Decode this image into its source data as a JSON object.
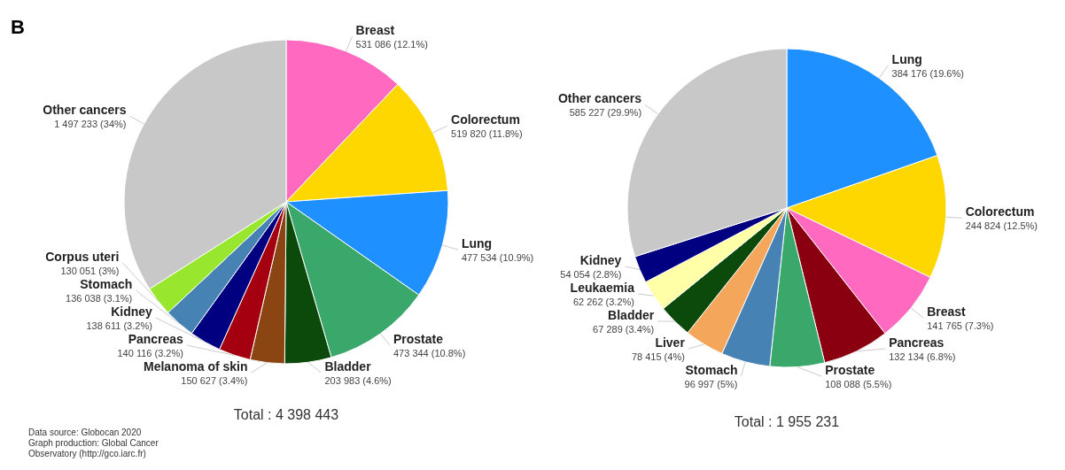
{
  "chart_data": [
    {
      "type": "pie",
      "categories": [
        "Breast",
        "Colorectum",
        "Lung",
        "Prostate",
        "Bladder",
        "Melanoma of skin",
        "Pancreas",
        "Kidney",
        "Stomach",
        "Corpus uteri",
        "Other cancers"
      ],
      "values": [
        531086,
        519820,
        477534,
        473344,
        203983,
        150627,
        140116,
        138611,
        136038,
        130051,
        1497233
      ],
      "value_labels": [
        "531 086 (12.1%)",
        "519 820 (11.8%)",
        "477 534 (10.9%)",
        "473 344 (10.8%)",
        "203 983 (4.6%)",
        "150 627 (3.4%)",
        "140 116 (3.2%)",
        "138 611 (3.2%)",
        "136 038 (3.1%)",
        "130 051 (3%)",
        "1 497 233 (34%)"
      ],
      "colors": [
        "#ff69c0",
        "#ffd700",
        "#1e90ff",
        "#3aa86b",
        "#0b4a0b",
        "#8b4513",
        "#a50010",
        "#000080",
        "#4682b4",
        "#99e62e",
        "#c8c8c8"
      ],
      "annotations": [
        "B",
        "Total : 4 398 443",
        "Data source: Globocan 2020",
        "Graph production: Global Cancer",
        "Observatory (http://gco.iarc.fr)"
      ]
    },
    {
      "type": "pie",
      "categories": [
        "Lung",
        "Colorectum",
        "Breast",
        "Pancreas",
        "Prostate",
        "Stomach",
        "Liver",
        "Bladder",
        "Leukaemia",
        "Kidney",
        "Other cancers"
      ],
      "values": [
        384176,
        244824,
        141765,
        132134,
        108088,
        96997,
        78415,
        67289,
        62262,
        54054,
        585227
      ],
      "value_labels": [
        "384 176 (19.6%)",
        "244 824 (12.5%)",
        "141 765 (7.3%)",
        "132 134 (6.8%)",
        "108 088 (5.5%)",
        "96 997 (5%)",
        "78 415 (4%)",
        "67 289 (3.4%)",
        "62 262 (3.2%)",
        "54 054 (2.8%)",
        "585 227 (29.9%)"
      ],
      "colors": [
        "#1e90ff",
        "#ffd700",
        "#ff69c0",
        "#8b0010",
        "#3aa86b",
        "#4682b4",
        "#f4a65a",
        "#0b4a0b",
        "#ffffa8",
        "#000080",
        "#c8c8c8"
      ],
      "annotations": [
        "Total : 1 955 231"
      ]
    }
  ]
}
